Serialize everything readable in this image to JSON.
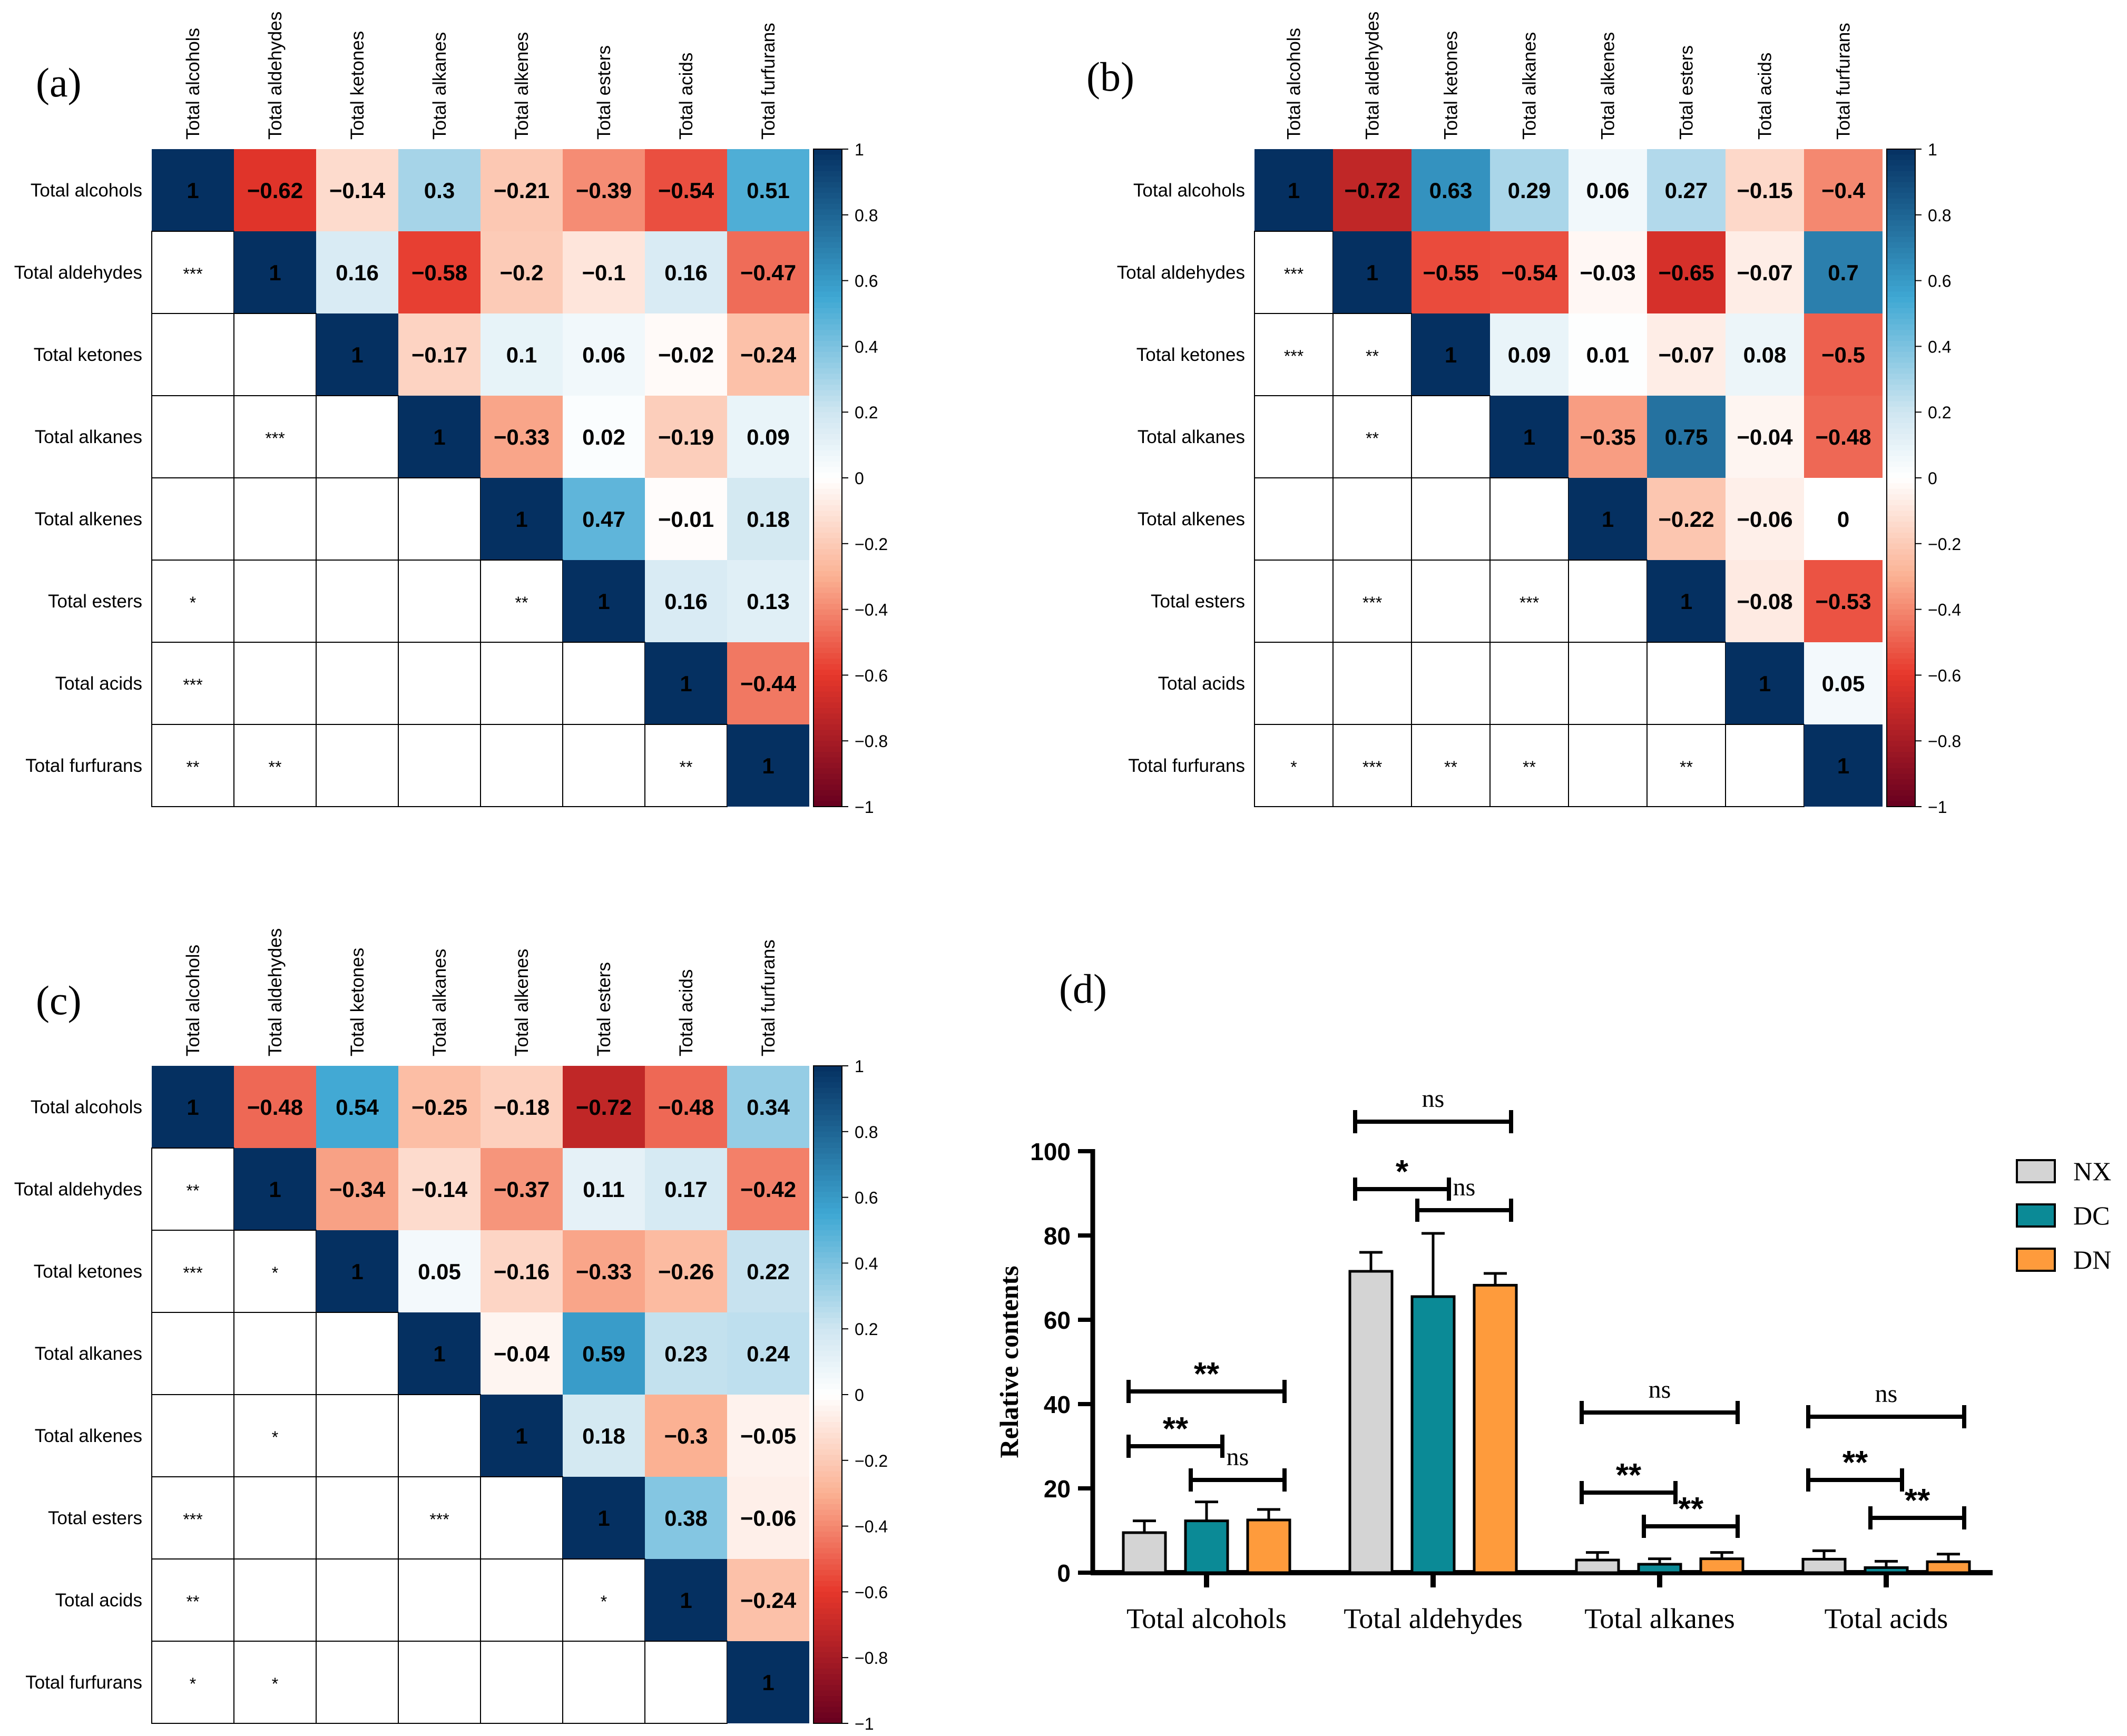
{
  "figure": {
    "colorbar_ticks": [
      "1",
      "0.8",
      "0.6",
      "0.4",
      "0.2",
      "0",
      "−0.2",
      "−0.4",
      "−0.6",
      "−0.8",
      "−1"
    ],
    "colorscale": {
      "negative_end": "#67001f",
      "mid_negative": "#e6372b",
      "light_negative": "#fbb193",
      "white": "#ffffff",
      "light_positive": "#cfe6f1",
      "mid_positive": "#3ea7d3",
      "positive_end": "#053061"
    }
  },
  "chart_data": [
    {
      "type": "heatmap",
      "panel_label": "(a)",
      "variables": [
        "Total alcohols",
        "Total aldehydes",
        "Total ketones",
        "Total alkanes",
        "Total alkenes",
        "Total esters",
        "Total acids",
        "Total furfurans"
      ],
      "upper_values": [
        [
          1,
          -0.62,
          -0.14,
          0.3,
          -0.21,
          -0.39,
          -0.54,
          0.51
        ],
        [
          null,
          1,
          0.16,
          -0.58,
          -0.2,
          -0.1,
          0.16,
          -0.47
        ],
        [
          null,
          null,
          1,
          -0.17,
          0.1,
          0.06,
          -0.02,
          -0.24
        ],
        [
          null,
          null,
          null,
          1,
          -0.33,
          0.02,
          -0.19,
          0.09
        ],
        [
          null,
          null,
          null,
          null,
          1,
          0.47,
          -0.01,
          0.18
        ],
        [
          null,
          null,
          null,
          null,
          null,
          1,
          0.16,
          0.13
        ],
        [
          null,
          null,
          null,
          null,
          null,
          null,
          1,
          -0.44
        ],
        [
          null,
          null,
          null,
          null,
          null,
          null,
          null,
          1
        ]
      ],
      "value_labels": [
        [
          "1",
          "−0.62",
          "−0.14",
          "0.3",
          "−0.21",
          "−0.39",
          "−0.54",
          "0.51"
        ],
        [
          "",
          "1",
          "0.16",
          "−0.58",
          "−0.2",
          "−0.1",
          "0.16",
          "−0.47"
        ],
        [
          "",
          "",
          "1",
          "−0.17",
          "0.1",
          "0.06",
          "−0.02",
          "−0.24"
        ],
        [
          "",
          "",
          "",
          "1",
          "−0.33",
          "0.02",
          "−0.19",
          "0.09"
        ],
        [
          "",
          "",
          "",
          "",
          "1",
          "0.47",
          "−0.01",
          "0.18"
        ],
        [
          "",
          "",
          "",
          "",
          "",
          "1",
          "0.16",
          "0.13"
        ],
        [
          "",
          "",
          "",
          "",
          "",
          "",
          "1",
          "−0.44"
        ],
        [
          "",
          "",
          "",
          "",
          "",
          "",
          "",
          "1"
        ]
      ],
      "significance": [
        [
          "",
          "",
          "",
          "",
          "",
          "",
          "",
          ""
        ],
        [
          "***",
          "",
          "",
          "",
          "",
          "",
          "",
          ""
        ],
        [
          "",
          "",
          "",
          "",
          "",
          "",
          "",
          ""
        ],
        [
          "",
          "***",
          "",
          "",
          "",
          "",
          "",
          ""
        ],
        [
          "",
          "",
          "",
          "",
          "",
          "",
          "",
          ""
        ],
        [
          "*",
          "",
          "",
          "",
          "**",
          "",
          "",
          ""
        ],
        [
          "***",
          "",
          "",
          "",
          "",
          "",
          "",
          ""
        ],
        [
          "**",
          "**",
          "",
          "",
          "",
          "",
          "**",
          ""
        ]
      ],
      "colorbar_range": [
        -1,
        1
      ]
    },
    {
      "type": "heatmap",
      "panel_label": "(b)",
      "variables": [
        "Total alcohols",
        "Total aldehydes",
        "Total ketones",
        "Total alkanes",
        "Total alkenes",
        "Total esters",
        "Total acids",
        "Total furfurans"
      ],
      "upper_values": [
        [
          1,
          -0.72,
          0.63,
          0.29,
          0.06,
          0.27,
          -0.15,
          -0.4
        ],
        [
          null,
          1,
          -0.55,
          -0.54,
          -0.03,
          -0.65,
          -0.07,
          0.7
        ],
        [
          null,
          null,
          1,
          0.09,
          0.01,
          -0.07,
          0.08,
          -0.5
        ],
        [
          null,
          null,
          null,
          1,
          -0.35,
          0.75,
          -0.04,
          -0.48
        ],
        [
          null,
          null,
          null,
          null,
          1,
          -0.22,
          -0.06,
          0
        ],
        [
          null,
          null,
          null,
          null,
          null,
          1,
          -0.08,
          -0.53
        ],
        [
          null,
          null,
          null,
          null,
          null,
          null,
          1,
          0.05
        ],
        [
          null,
          null,
          null,
          null,
          null,
          null,
          null,
          1
        ]
      ],
      "value_labels": [
        [
          "1",
          "−0.72",
          "0.63",
          "0.29",
          "0.06",
          "0.27",
          "−0.15",
          "−0.4"
        ],
        [
          "",
          "1",
          "−0.55",
          "−0.54",
          "−0.03",
          "−0.65",
          "−0.07",
          "0.7"
        ],
        [
          "",
          "",
          "1",
          "0.09",
          "0.01",
          "−0.07",
          "0.08",
          "−0.5"
        ],
        [
          "",
          "",
          "",
          "1",
          "−0.35",
          "0.75",
          "−0.04",
          "−0.48"
        ],
        [
          "",
          "",
          "",
          "",
          "1",
          "−0.22",
          "−0.06",
          "0"
        ],
        [
          "",
          "",
          "",
          "",
          "",
          "1",
          "−0.08",
          "−0.53"
        ],
        [
          "",
          "",
          "",
          "",
          "",
          "",
          "1",
          "0.05"
        ],
        [
          "",
          "",
          "",
          "",
          "",
          "",
          "",
          "1"
        ]
      ],
      "significance": [
        [
          "",
          "",
          "",
          "",
          "",
          "",
          "",
          ""
        ],
        [
          "***",
          "",
          "",
          "",
          "",
          "",
          "",
          ""
        ],
        [
          "***",
          "**",
          "",
          "",
          "",
          "",
          "",
          ""
        ],
        [
          "",
          "**",
          "",
          "",
          "",
          "",
          "",
          ""
        ],
        [
          "",
          "",
          "",
          "",
          "",
          "",
          "",
          ""
        ],
        [
          "",
          "***",
          "",
          "***",
          "",
          "",
          "",
          ""
        ],
        [
          "",
          "",
          "",
          "",
          "",
          "",
          "",
          ""
        ],
        [
          "*",
          "***",
          "**",
          "**",
          "",
          "**",
          "",
          ""
        ]
      ],
      "colorbar_range": [
        -1,
        1
      ]
    },
    {
      "type": "heatmap",
      "panel_label": "(c)",
      "variables": [
        "Total alcohols",
        "Total aldehydes",
        "Total ketones",
        "Total alkanes",
        "Total alkenes",
        "Total esters",
        "Total acids",
        "Total furfurans"
      ],
      "upper_values": [
        [
          1,
          -0.48,
          0.54,
          -0.25,
          -0.18,
          -0.72,
          -0.48,
          0.34
        ],
        [
          null,
          1,
          -0.34,
          -0.14,
          -0.37,
          0.11,
          0.17,
          -0.42
        ],
        [
          null,
          null,
          1,
          0.05,
          -0.16,
          -0.33,
          -0.26,
          0.22
        ],
        [
          null,
          null,
          null,
          1,
          -0.04,
          0.59,
          0.23,
          0.24
        ],
        [
          null,
          null,
          null,
          null,
          1,
          0.18,
          -0.3,
          -0.05
        ],
        [
          null,
          null,
          null,
          null,
          null,
          1,
          0.38,
          -0.06
        ],
        [
          null,
          null,
          null,
          null,
          null,
          null,
          1,
          -0.24
        ],
        [
          null,
          null,
          null,
          null,
          null,
          null,
          null,
          1
        ]
      ],
      "value_labels": [
        [
          "1",
          "−0.48",
          "0.54",
          "−0.25",
          "−0.18",
          "−0.72",
          "−0.48",
          "0.34"
        ],
        [
          "",
          "1",
          "−0.34",
          "−0.14",
          "−0.37",
          "0.11",
          "0.17",
          "−0.42"
        ],
        [
          "",
          "",
          "1",
          "0.05",
          "−0.16",
          "−0.33",
          "−0.26",
          "0.22"
        ],
        [
          "",
          "",
          "",
          "1",
          "−0.04",
          "0.59",
          "0.23",
          "0.24"
        ],
        [
          "",
          "",
          "",
          "",
          "1",
          "0.18",
          "−0.3",
          "−0.05"
        ],
        [
          "",
          "",
          "",
          "",
          "",
          "1",
          "0.38",
          "−0.06"
        ],
        [
          "",
          "",
          "",
          "",
          "",
          "",
          "1",
          "−0.24"
        ],
        [
          "",
          "",
          "",
          "",
          "",
          "",
          "",
          "1"
        ]
      ],
      "significance": [
        [
          "",
          "",
          "",
          "",
          "",
          "",
          "",
          ""
        ],
        [
          "**",
          "",
          "",
          "",
          "",
          "",
          "",
          ""
        ],
        [
          "***",
          "*",
          "",
          "",
          "",
          "",
          "",
          ""
        ],
        [
          "",
          "",
          "",
          "",
          "",
          "",
          "",
          ""
        ],
        [
          "",
          "*",
          "",
          "",
          "",
          "",
          "",
          ""
        ],
        [
          "***",
          "",
          "",
          "***",
          "",
          "",
          "",
          ""
        ],
        [
          "**",
          "",
          "",
          "",
          "",
          "*",
          "",
          ""
        ],
        [
          "*",
          "*",
          "",
          "",
          "",
          "",
          "",
          ""
        ]
      ],
      "colorbar_range": [
        -1,
        1
      ]
    },
    {
      "type": "bar",
      "panel_label": "(d)",
      "categories": [
        "Total alcohols",
        "Total aldehydes",
        "Total alkanes",
        "Total acids"
      ],
      "series": [
        {
          "name": "NX",
          "color": "#d4d4d4",
          "values": [
            9.5,
            71.5,
            3.0,
            3.2
          ],
          "errors": [
            2.8,
            4.5,
            1.8,
            2.0
          ]
        },
        {
          "name": "DC",
          "color": "#0b8a96",
          "values": [
            12.3,
            65.5,
            2.0,
            1.2
          ],
          "errors": [
            4.5,
            15.0,
            1.3,
            1.5
          ]
        },
        {
          "name": "DN",
          "color": "#fe9b3c",
          "values": [
            12.5,
            68.2,
            3.3,
            2.6
          ],
          "errors": [
            2.5,
            2.8,
            1.5,
            1.8
          ]
        }
      ],
      "ylabel": "Relative contents",
      "ylim": [
        0,
        100
      ],
      "yticks": [
        "0",
        "20",
        "40",
        "60",
        "80",
        "100"
      ],
      "comparisons": [
        {
          "category": 0,
          "from": 0,
          "to": 1,
          "label": "**",
          "y": 30
        },
        {
          "category": 0,
          "from": 1,
          "to": 2,
          "label": "ns",
          "y": 22
        },
        {
          "category": 0,
          "from": 0,
          "to": 2,
          "label": "**",
          "y": 43
        },
        {
          "category": 1,
          "from": 0,
          "to": 1,
          "label": "*",
          "y": 91
        },
        {
          "category": 1,
          "from": 1,
          "to": 2,
          "label": "ns",
          "y": 86
        },
        {
          "category": 1,
          "from": 0,
          "to": 2,
          "label": "ns",
          "y": 107
        },
        {
          "category": 2,
          "from": 0,
          "to": 1,
          "label": "**",
          "y": 19
        },
        {
          "category": 2,
          "from": 1,
          "to": 2,
          "label": "**",
          "y": 11
        },
        {
          "category": 2,
          "from": 0,
          "to": 2,
          "label": "ns",
          "y": 38
        },
        {
          "category": 3,
          "from": 0,
          "to": 1,
          "label": "**",
          "y": 22
        },
        {
          "category": 3,
          "from": 1,
          "to": 2,
          "label": "**",
          "y": 13
        },
        {
          "category": 3,
          "from": 0,
          "to": 2,
          "label": "ns",
          "y": 37
        }
      ]
    }
  ]
}
